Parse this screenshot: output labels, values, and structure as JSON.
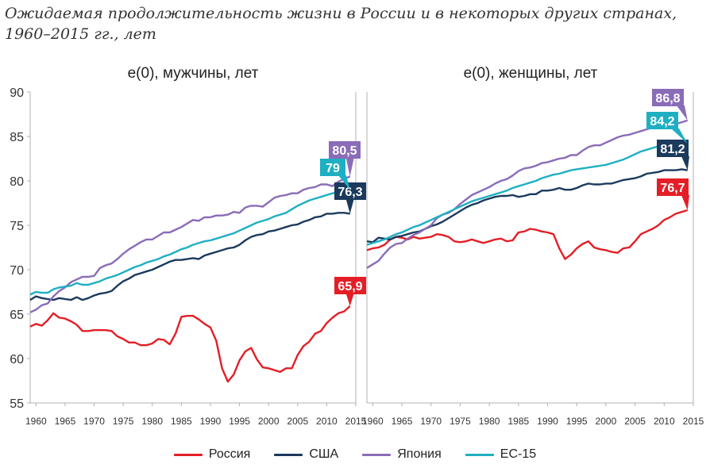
{
  "title_line1": "Ожидаемая продолжительность жизни в России и в некоторых других странах,",
  "title_line2": "1960–2015 гг., лет",
  "colors": {
    "russia": "#e41e26",
    "usa": "#1b3a5c",
    "japan": "#8a6cb8",
    "eu15": "#1fafc2"
  },
  "legend": [
    {
      "label": "Россия",
      "color_key": "russia"
    },
    {
      "label": "США",
      "color_key": "usa"
    },
    {
      "label": "Япония",
      "color_key": "japan"
    },
    {
      "label": "ЕС-15",
      "color_key": "eu15"
    }
  ],
  "chart_data": [
    {
      "type": "line",
      "title": "e(0), мужчины, лет",
      "xlim": [
        1959,
        2015
      ],
      "ylim": [
        55,
        90
      ],
      "yticks": [
        55,
        60,
        65,
        70,
        75,
        80,
        85,
        90
      ],
      "xticks": [
        1960,
        1965,
        1970,
        1975,
        1980,
        1985,
        1990,
        1995,
        2000,
        2005,
        2010,
        2015
      ],
      "grid": false,
      "series": [
        {
          "name": "Россия",
          "color_key": "russia",
          "end_label": "65,9",
          "x_start": 1959,
          "values": [
            63.6,
            63.9,
            63.7,
            64.3,
            65.1,
            64.6,
            64.5,
            64.2,
            63.8,
            63.1,
            63.1,
            63.2,
            63.2,
            63.2,
            63.1,
            62.5,
            62.2,
            61.8,
            61.8,
            61.5,
            61.5,
            61.7,
            62.2,
            62.1,
            61.6,
            62.8,
            64.7,
            64.8,
            64.8,
            64.4,
            63.9,
            63.5,
            62.0,
            58.9,
            57.4,
            58.2,
            59.8,
            60.8,
            61.2,
            59.9,
            59.0,
            58.9,
            58.7,
            58.5,
            58.9,
            58.9,
            60.4,
            61.4,
            61.9,
            62.8,
            63.1,
            64.0,
            64.6,
            65.1,
            65.3,
            65.9
          ]
        },
        {
          "name": "США",
          "color_key": "usa",
          "end_label": "76,3",
          "x_start": 1959,
          "values": [
            66.6,
            67.0,
            66.8,
            66.7,
            66.6,
            66.8,
            66.7,
            66.6,
            66.9,
            66.6,
            66.8,
            67.1,
            67.3,
            67.4,
            67.6,
            68.2,
            68.7,
            69.0,
            69.4,
            69.6,
            69.8,
            70.0,
            70.3,
            70.6,
            70.9,
            71.1,
            71.1,
            71.2,
            71.3,
            71.2,
            71.6,
            71.8,
            72.0,
            72.2,
            72.4,
            72.5,
            72.8,
            73.3,
            73.7,
            73.9,
            74.0,
            74.3,
            74.4,
            74.6,
            74.8,
            75.0,
            75.1,
            75.4,
            75.6,
            75.9,
            76.0,
            76.3,
            76.3,
            76.4,
            76.4,
            76.3
          ]
        },
        {
          "name": "Япония",
          "color_key": "japan",
          "end_label": "80,5",
          "x_start": 1959,
          "values": [
            65.2,
            65.5,
            66.0,
            66.2,
            67.0,
            67.6,
            68.0,
            68.6,
            68.9,
            69.2,
            69.2,
            69.3,
            70.2,
            70.5,
            70.7,
            71.2,
            71.8,
            72.3,
            72.7,
            73.1,
            73.4,
            73.4,
            73.8,
            74.2,
            74.2,
            74.5,
            74.8,
            75.2,
            75.6,
            75.5,
            75.9,
            75.9,
            76.1,
            76.1,
            76.2,
            76.5,
            76.4,
            77.0,
            77.2,
            77.2,
            77.1,
            77.6,
            78.1,
            78.3,
            78.4,
            78.6,
            78.6,
            79.0,
            79.2,
            79.3,
            79.6,
            79.6,
            79.4,
            79.9,
            80.2,
            80.5
          ]
        },
        {
          "name": "ЕС-15",
          "color_key": "eu15",
          "end_label": "79",
          "x_start": 1959,
          "values": [
            67.2,
            67.5,
            67.4,
            67.4,
            67.8,
            68.0,
            68.1,
            68.2,
            68.5,
            68.3,
            68.3,
            68.5,
            68.7,
            69.0,
            69.2,
            69.4,
            69.7,
            70.0,
            70.3,
            70.5,
            70.8,
            71.0,
            71.2,
            71.5,
            71.7,
            72.0,
            72.3,
            72.5,
            72.8,
            73.0,
            73.2,
            73.3,
            73.5,
            73.7,
            73.9,
            74.1,
            74.4,
            74.7,
            75.0,
            75.3,
            75.5,
            75.7,
            76.0,
            76.2,
            76.4,
            76.8,
            77.2,
            77.5,
            77.8,
            78.0,
            78.2,
            78.4,
            78.6,
            78.7,
            78.8,
            79.0
          ]
        }
      ]
    },
    {
      "type": "line",
      "title": "e(0), женщины, лет",
      "xlim": [
        1959,
        2015
      ],
      "ylim": [
        55,
        90
      ],
      "xticks": [
        1960,
        1965,
        1970,
        1975,
        1980,
        1985,
        1990,
        1995,
        2000,
        2005,
        2010,
        2015
      ],
      "grid": false,
      "series": [
        {
          "name": "Россия",
          "color_key": "russia",
          "end_label": "76,7",
          "x_start": 1959,
          "values": [
            72.2,
            72.4,
            72.5,
            72.8,
            73.4,
            73.7,
            73.6,
            73.4,
            73.7,
            73.5,
            73.6,
            73.7,
            74.0,
            73.9,
            73.7,
            73.2,
            73.1,
            73.2,
            73.4,
            73.2,
            73.0,
            73.2,
            73.4,
            73.5,
            73.2,
            73.3,
            74.2,
            74.3,
            74.6,
            74.5,
            74.3,
            74.2,
            74.0,
            72.4,
            71.2,
            71.7,
            72.4,
            72.9,
            73.2,
            72.5,
            72.3,
            72.2,
            72.0,
            71.9,
            72.4,
            72.5,
            73.2,
            74.0,
            74.3,
            74.6,
            75.0,
            75.6,
            75.9,
            76.3,
            76.5,
            76.7
          ]
        },
        {
          "name": "США",
          "color_key": "usa",
          "end_label": "81,2",
          "x_start": 1959,
          "values": [
            73.2,
            73.1,
            73.6,
            73.5,
            73.4,
            73.7,
            73.8,
            74.0,
            74.2,
            74.3,
            74.6,
            74.9,
            75.1,
            75.4,
            75.8,
            76.2,
            76.6,
            77.0,
            77.3,
            77.5,
            77.8,
            78.0,
            78.2,
            78.3,
            78.3,
            78.4,
            78.2,
            78.3,
            78.5,
            78.5,
            78.9,
            78.9,
            79.0,
            79.2,
            79.0,
            79.0,
            79.2,
            79.5,
            79.7,
            79.6,
            79.6,
            79.7,
            79.7,
            79.9,
            80.1,
            80.2,
            80.3,
            80.5,
            80.8,
            80.9,
            81.0,
            81.2,
            81.2,
            81.2,
            81.3,
            81.2
          ]
        },
        {
          "name": "Япония",
          "color_key": "japan",
          "end_label": "86,8",
          "x_start": 1959,
          "values": [
            70.2,
            70.6,
            71.0,
            71.8,
            72.5,
            72.9,
            73.0,
            73.5,
            73.9,
            74.2,
            74.6,
            75.0,
            75.8,
            76.2,
            76.4,
            76.8,
            77.4,
            77.9,
            78.4,
            78.7,
            79.0,
            79.3,
            79.7,
            80.0,
            80.2,
            80.6,
            81.1,
            81.4,
            81.5,
            81.7,
            82.0,
            82.1,
            82.3,
            82.5,
            82.6,
            82.9,
            82.9,
            83.4,
            83.8,
            84.0,
            84.0,
            84.3,
            84.6,
            84.9,
            85.1,
            85.2,
            85.4,
            85.6,
            85.8,
            86.0,
            86.2,
            86.4,
            86.4,
            86.4,
            86.6,
            86.8
          ]
        },
        {
          "name": "ЕС-15",
          "color_key": "eu15",
          "end_label": "84,2",
          "x_start": 1959,
          "values": [
            72.8,
            73.0,
            73.2,
            73.4,
            73.7,
            74.0,
            74.2,
            74.5,
            74.8,
            75.0,
            75.3,
            75.6,
            75.9,
            76.2,
            76.5,
            76.8,
            77.1,
            77.4,
            77.7,
            77.9,
            78.1,
            78.3,
            78.5,
            78.7,
            78.9,
            79.2,
            79.4,
            79.6,
            79.8,
            80.0,
            80.3,
            80.5,
            80.7,
            80.8,
            81.0,
            81.2,
            81.3,
            81.4,
            81.5,
            81.6,
            81.7,
            81.8,
            82.0,
            82.2,
            82.4,
            82.7,
            83.0,
            83.3,
            83.5,
            83.7,
            83.9,
            84.1,
            84.2,
            84.2,
            84.2,
            84.2
          ]
        }
      ]
    }
  ]
}
